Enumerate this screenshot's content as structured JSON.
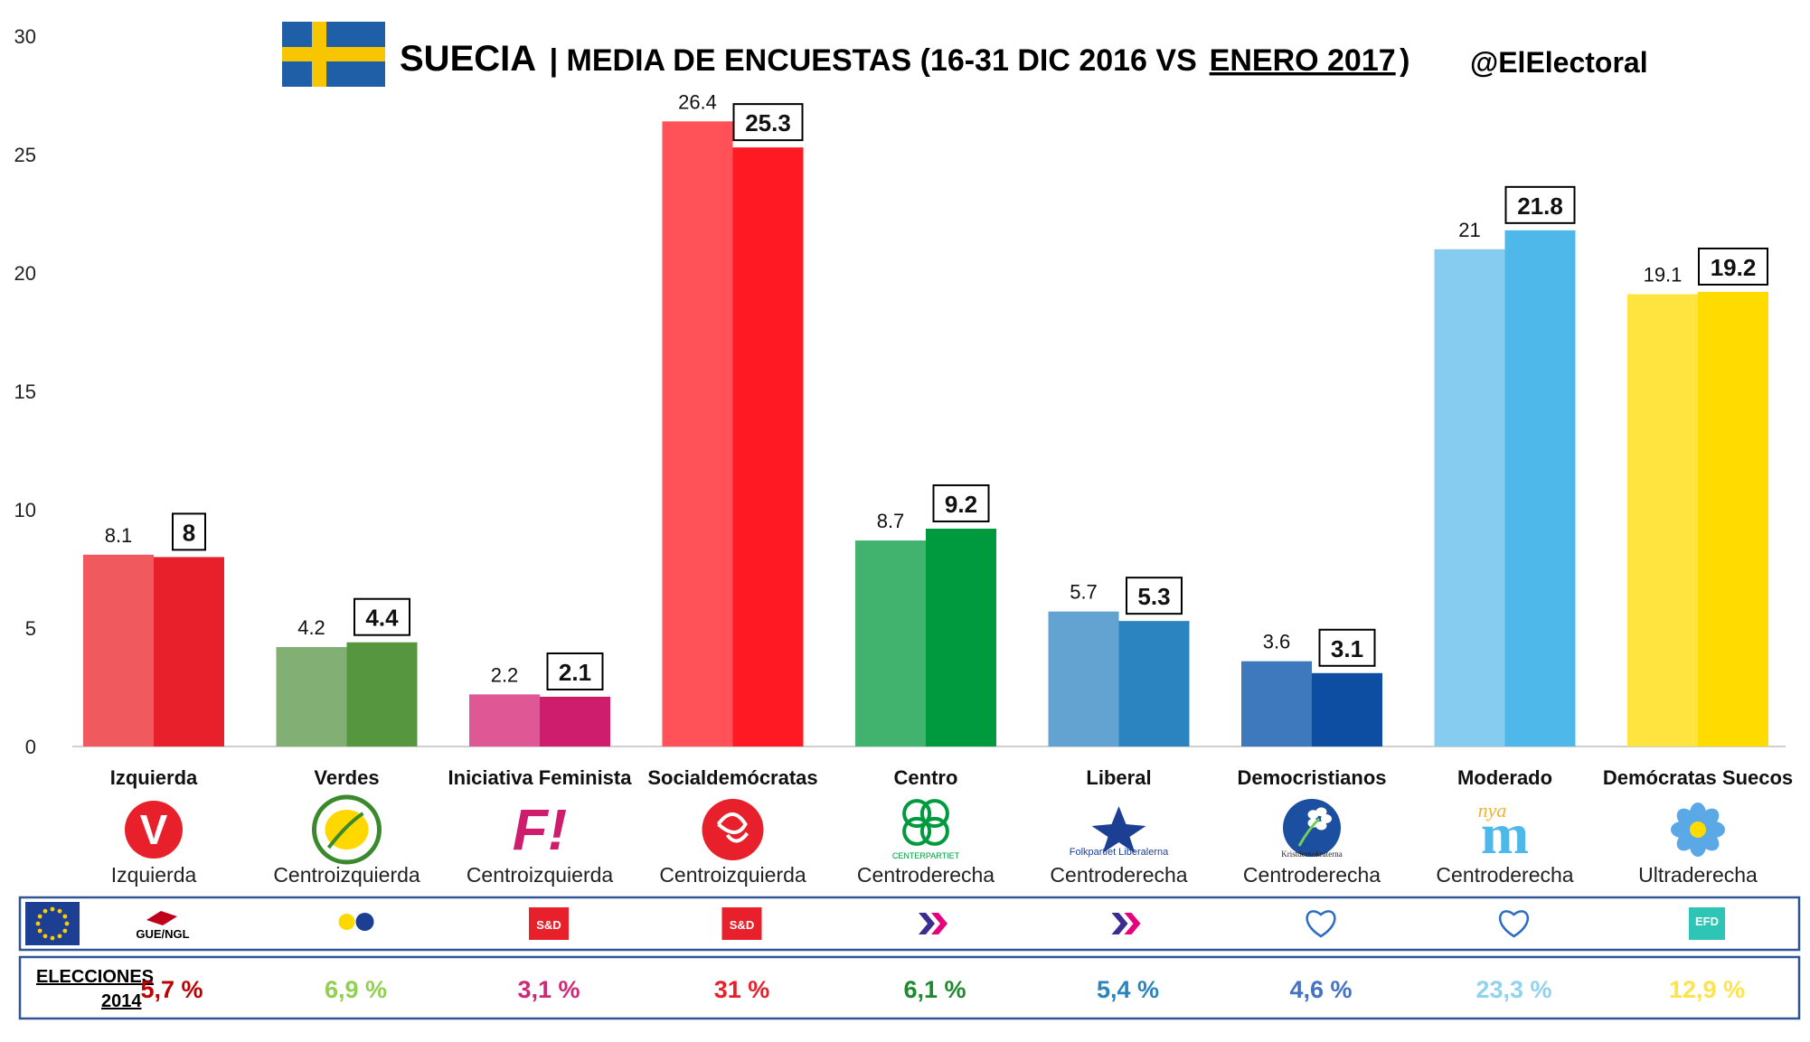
{
  "header": {
    "title_country": "SUECIA",
    "title_rest": "| MEDIA DE ENCUESTAS (16-31 DIC 2016 VS ",
    "title_underlined": "ENERO 2017",
    "title_close": " )",
    "handle": "@ElElectoral"
  },
  "colors": {
    "flag_blue": "#1f5fa8",
    "flag_yellow": "#f7c600",
    "results_border": "#2f5597"
  },
  "chart_data": {
    "type": "bar",
    "ylim": [
      0,
      30
    ],
    "yticks": [
      0,
      5,
      10,
      15,
      20,
      25,
      30
    ],
    "grid": false,
    "categories": [
      "Izquierda",
      "Verdes",
      "Iniciativa Feminista",
      "Socialdemócratas",
      "Centro",
      "Liberal",
      "Democristianos",
      "Moderado",
      "Demócratas Suecos"
    ],
    "series": [
      {
        "period": "16-31 DIC 2016",
        "values": [
          8.1,
          4.2,
          2.2,
          26.4,
          8.7,
          5.7,
          3.6,
          21,
          19.1
        ],
        "colors": [
          "#f05a5f",
          "#82b074",
          "#df5794",
          "#ff5157",
          "#41b36e",
          "#63a3d1",
          "#3f79bd",
          "#85ccf0",
          "#ffe33f"
        ]
      },
      {
        "period": "ENERO 2017",
        "values": [
          8,
          4.4,
          2.1,
          25.3,
          9.2,
          5.3,
          3.1,
          21.8,
          19.2
        ],
        "colors": [
          "#e8202b",
          "#56963f",
          "#cd1d6c",
          "#ff1a23",
          "#009a3e",
          "#2b84c0",
          "#0d4ea2",
          "#4db8e9",
          "#ffdb00"
        ]
      }
    ],
    "value_labels_old": [
      "8.1",
      "4.2",
      "2.2",
      "26.4",
      "8.7",
      "5.7",
      "3.6",
      "21",
      "19.1"
    ],
    "value_labels_new": [
      "8",
      "4.4",
      "2.1",
      "25.3",
      "9.2",
      "5.3",
      "3.1",
      "21.8",
      "19.2"
    ]
  },
  "parties": [
    {
      "name": "Izquierda",
      "ideology": "Izquierda",
      "logo_icon": "v-party-icon",
      "eu_group": "GUE/NGL",
      "eu_icon": "gue-ngl-icon",
      "result_2014": "5,7 %",
      "result_color": "#c00000"
    },
    {
      "name": "Verdes",
      "ideology": "Centroizquierda",
      "logo_icon": "sunflower-icon",
      "eu_group": "Greens/EFA",
      "eu_icon": "greens-efa-icon",
      "result_2014": "6,9 %",
      "result_color": "#92d050"
    },
    {
      "name": "Iniciativa Feminista",
      "ideology": "Centroizquierda",
      "logo_icon": "f-exclamation-icon",
      "logo_text": "F!",
      "eu_group": "S&D",
      "eu_icon": "s-and-d-icon",
      "result_2014": "3,1 %",
      "result_color": "#cc2a76"
    },
    {
      "name": "Socialdemócratas",
      "ideology": "Centroizquierda",
      "logo_icon": "rose-icon",
      "eu_group": "S&D",
      "eu_icon": "s-and-d-icon",
      "result_2014": "31 %",
      "result_color": "#e8202b"
    },
    {
      "name": "Centro",
      "ideology": "Centroderecha",
      "logo_icon": "clover-icon",
      "logo_text": "CENTERPARTIET",
      "eu_group": "ALDE",
      "eu_icon": "alde-icon",
      "result_2014": "6,1 %",
      "result_color": "#1e8a2e"
    },
    {
      "name": "Liberal",
      "ideology": "Centroderecha",
      "logo_icon": "star-flame-icon",
      "logo_text": "Folkpartiet Liberalerna",
      "eu_group": "ALDE",
      "eu_icon": "alde-icon",
      "result_2014": "5,4 %",
      "result_color": "#2b84c0"
    },
    {
      "name": "Democristianos",
      "ideology": "Centroderecha",
      "logo_icon": "anemone-icon",
      "logo_text": "Kristdemokraterna",
      "eu_group": "EPP",
      "eu_icon": "epp-icon",
      "result_2014": "4,6 %",
      "result_color": "#4472c4"
    },
    {
      "name": "Moderado",
      "ideology": "Centroderecha",
      "logo_icon": "nya-m-icon",
      "logo_text": "nya",
      "eu_group": "EPP",
      "eu_icon": "epp-icon",
      "result_2014": "23,3 %",
      "result_color": "#8fd3ef"
    },
    {
      "name": "Demócratas Suecos",
      "ideology": "Ultraderecha",
      "logo_icon": "blue-flower-icon",
      "eu_group": "EFD",
      "eu_icon": "efd-icon",
      "result_2014": "12,9 %",
      "result_color": "#ffe34d"
    }
  ],
  "results_row": {
    "label_line1": "ELECCIONES",
    "label_line2": "2014"
  },
  "eu_row": {
    "eu_flag_icon": "eu-flag-icon"
  }
}
